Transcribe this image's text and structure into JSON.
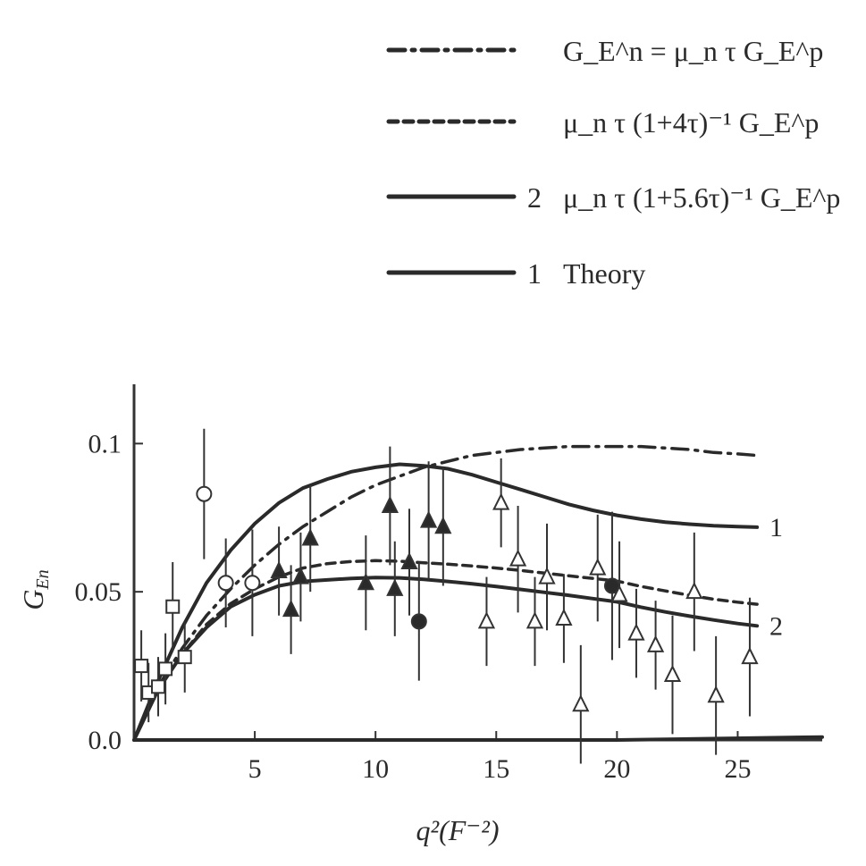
{
  "chart_data": {
    "type": "line",
    "xlabel": "q²(F⁻²)",
    "ylabel": "G_En",
    "xlim": [
      0,
      28.5
    ],
    "ylim": [
      0,
      0.12
    ],
    "x_ticks": [
      5,
      10,
      15,
      20,
      25
    ],
    "y_ticks": [
      0.0,
      0.05,
      0.1
    ],
    "x_tick_labels": [
      "5",
      "10",
      "15",
      "20",
      "25"
    ],
    "y_tick_labels": [
      "0.0",
      "0.05",
      "0.1"
    ],
    "grid": false,
    "legend_position": "top-right",
    "legend": [
      {
        "style": "dashdot",
        "number": "",
        "label": "G_E^n = μ_n τ G_E^p"
      },
      {
        "style": "dashed",
        "number": "",
        "label": "μ_n τ (1+4τ)⁻¹ G_E^p"
      },
      {
        "style": "solid",
        "number": "2",
        "label": "μ_n τ (1+5.6τ)⁻¹ G_E^p"
      },
      {
        "style": "solid",
        "number": "1",
        "label": "Theory"
      }
    ],
    "series": [
      {
        "style": "dashdot",
        "curve_label": "",
        "x": [
          0,
          1,
          2,
          3,
          4,
          5,
          6,
          7,
          8,
          9,
          10,
          11,
          12,
          13,
          14,
          15,
          16,
          17,
          18,
          19,
          20,
          21,
          22,
          23,
          24,
          25,
          25.8
        ],
        "y": [
          0,
          0.018,
          0.031,
          0.042,
          0.051,
          0.059,
          0.066,
          0.072,
          0.077,
          0.082,
          0.086,
          0.089,
          0.092,
          0.094,
          0.096,
          0.097,
          0.098,
          0.0985,
          0.099,
          0.099,
          0.099,
          0.099,
          0.0985,
          0.098,
          0.097,
          0.0965,
          0.096
        ]
      },
      {
        "style": "dashed",
        "curve_label": "",
        "x": [
          0,
          1,
          2,
          3,
          4,
          5,
          6,
          7,
          8,
          9,
          10,
          11,
          12,
          13,
          14,
          15,
          16,
          17,
          18,
          19,
          20,
          21,
          22,
          23,
          24,
          25,
          25.8
        ],
        "y": [
          0,
          0.017,
          0.029,
          0.039,
          0.046,
          0.051,
          0.055,
          0.058,
          0.0595,
          0.0602,
          0.0605,
          0.0603,
          0.0598,
          0.0593,
          0.0587,
          0.058,
          0.0572,
          0.0563,
          0.0554,
          0.0545,
          0.0536,
          0.0518,
          0.0503,
          0.0488,
          0.0475,
          0.0465,
          0.0458
        ]
      },
      {
        "style": "solid",
        "curve_label": "2",
        "x": [
          0,
          1,
          2,
          3,
          4,
          5,
          6,
          7,
          8,
          9,
          10,
          11,
          12,
          13,
          14,
          15,
          16,
          17,
          18,
          19,
          20,
          21,
          22,
          23,
          24,
          25,
          25.8
        ],
        "y": [
          0,
          0.017,
          0.029,
          0.038,
          0.045,
          0.049,
          0.052,
          0.0535,
          0.054,
          0.0545,
          0.0548,
          0.0547,
          0.0542,
          0.0535,
          0.0527,
          0.0518,
          0.0508,
          0.0498,
          0.0488,
          0.0477,
          0.0466,
          0.0448,
          0.0432,
          0.0418,
          0.0405,
          0.0393,
          0.0385
        ]
      },
      {
        "style": "solid",
        "curve_label": "1",
        "x": [
          0,
          1,
          2,
          3,
          4,
          5,
          6,
          7,
          8,
          9,
          10,
          11,
          12,
          13,
          14,
          15,
          16,
          17,
          18,
          19,
          20,
          21,
          22,
          23,
          24,
          25,
          25.8
        ],
        "y": [
          0,
          0.02,
          0.038,
          0.053,
          0.064,
          0.073,
          0.08,
          0.085,
          0.088,
          0.0905,
          0.092,
          0.093,
          0.0925,
          0.0915,
          0.0895,
          0.087,
          0.0845,
          0.082,
          0.0795,
          0.0775,
          0.0758,
          0.0745,
          0.0735,
          0.0728,
          0.0723,
          0.072,
          0.0718
        ]
      },
      {
        "style": "solid",
        "curve_label": "",
        "x": [
          0,
          10,
          20,
          28.5
        ],
        "y": [
          0,
          0,
          0,
          0.001
        ]
      }
    ],
    "data_points": [
      {
        "marker": "square-open",
        "x": 0.3,
        "y": 0.025,
        "err": 0.012
      },
      {
        "marker": "square-open",
        "x": 0.6,
        "y": 0.016,
        "err": 0.01
      },
      {
        "marker": "square-open",
        "x": 1.0,
        "y": 0.018,
        "err": 0.01
      },
      {
        "marker": "square-open",
        "x": 1.3,
        "y": 0.024,
        "err": 0.012
      },
      {
        "marker": "square-open",
        "x": 1.6,
        "y": 0.045,
        "err": 0.015
      },
      {
        "marker": "square-open",
        "x": 2.1,
        "y": 0.028,
        "err": 0.012
      },
      {
        "marker": "circle-open",
        "x": 2.9,
        "y": 0.083,
        "err": 0.022
      },
      {
        "marker": "circle-open",
        "x": 3.8,
        "y": 0.053,
        "err": 0.015
      },
      {
        "marker": "circle-open",
        "x": 4.9,
        "y": 0.053,
        "err": 0.018
      },
      {
        "marker": "triangle-filled",
        "x": 6.0,
        "y": 0.057,
        "err": 0.015
      },
      {
        "marker": "triangle-filled",
        "x": 6.5,
        "y": 0.044,
        "err": 0.015
      },
      {
        "marker": "triangle-filled",
        "x": 6.9,
        "y": 0.055,
        "err": 0.015
      },
      {
        "marker": "triangle-filled",
        "x": 7.3,
        "y": 0.068,
        "err": 0.018
      },
      {
        "marker": "triangle-filled",
        "x": 9.6,
        "y": 0.053,
        "err": 0.016
      },
      {
        "marker": "triangle-filled",
        "x": 10.6,
        "y": 0.079,
        "err": 0.02
      },
      {
        "marker": "triangle-filled",
        "x": 10.8,
        "y": 0.051,
        "err": 0.016
      },
      {
        "marker": "circle-filled",
        "x": 11.8,
        "y": 0.04,
        "err": 0.02
      },
      {
        "marker": "triangle-filled",
        "x": 11.4,
        "y": 0.06,
        "err": 0.018
      },
      {
        "marker": "triangle-filled",
        "x": 12.2,
        "y": 0.074,
        "err": 0.02
      },
      {
        "marker": "triangle-filled",
        "x": 12.8,
        "y": 0.072,
        "err": 0.02
      },
      {
        "marker": "triangle-open",
        "x": 14.6,
        "y": 0.04,
        "err": 0.015
      },
      {
        "marker": "triangle-open",
        "x": 15.2,
        "y": 0.08,
        "err": 0.015
      },
      {
        "marker": "triangle-open",
        "x": 15.9,
        "y": 0.061,
        "err": 0.018
      },
      {
        "marker": "triangle-open",
        "x": 16.6,
        "y": 0.04,
        "err": 0.015
      },
      {
        "marker": "triangle-open",
        "x": 17.1,
        "y": 0.055,
        "err": 0.018
      },
      {
        "marker": "triangle-open",
        "x": 17.8,
        "y": 0.041,
        "err": 0.015
      },
      {
        "marker": "triangle-open",
        "x": 18.5,
        "y": 0.012,
        "err": 0.02
      },
      {
        "marker": "triangle-open",
        "x": 19.2,
        "y": 0.058,
        "err": 0.018
      },
      {
        "marker": "circle-filled",
        "x": 19.8,
        "y": 0.052,
        "err": 0.025
      },
      {
        "marker": "triangle-open",
        "x": 20.1,
        "y": 0.049,
        "err": 0.018
      },
      {
        "marker": "triangle-open",
        "x": 20.8,
        "y": 0.036,
        "err": 0.015
      },
      {
        "marker": "triangle-open",
        "x": 21.6,
        "y": 0.032,
        "err": 0.015
      },
      {
        "marker": "triangle-open",
        "x": 22.3,
        "y": 0.022,
        "err": 0.02
      },
      {
        "marker": "triangle-open",
        "x": 23.2,
        "y": 0.05,
        "err": 0.02
      },
      {
        "marker": "triangle-open",
        "x": 24.1,
        "y": 0.015,
        "err": 0.02
      },
      {
        "marker": "triangle-open",
        "x": 25.5,
        "y": 0.028,
        "err": 0.02
      }
    ]
  }
}
